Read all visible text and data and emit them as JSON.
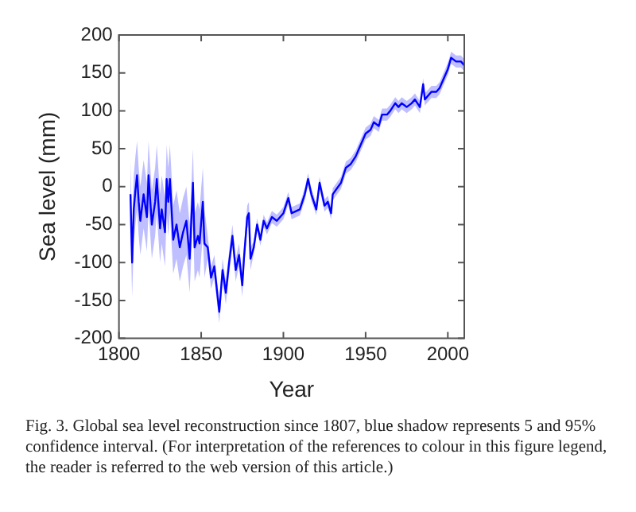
{
  "chart_data": {
    "type": "line",
    "xlabel": "Year",
    "ylabel": "Sea level (mm)",
    "annotations": [
      "Fig. 3. Global sea level reconstruction since 1807, blue shadow represents 5 and 95% confidence interval. (For interpretation of the references to colour in this figure legend, the reader is referred to the web version of this article.)"
    ],
    "xlim": [
      1800,
      2010
    ],
    "xticks": [
      1800,
      1850,
      1900,
      1950,
      2000
    ],
    "ylim": [
      -200,
      200
    ],
    "yticks": [
      -200,
      -150,
      -100,
      -50,
      0,
      50,
      100,
      150,
      200
    ],
    "legend": false,
    "grid": false,
    "series": [
      {
        "color": "#0000ff",
        "x": [
          1807,
          1808,
          1809,
          1810,
          1811,
          1812,
          1813,
          1815,
          1817,
          1818,
          1820,
          1822,
          1823,
          1825,
          1826,
          1828,
          1829,
          1830,
          1831,
          1833,
          1835,
          1837,
          1839,
          1841,
          1843,
          1845,
          1846,
          1848,
          1849,
          1851,
          1852,
          1854,
          1856,
          1858,
          1860,
          1861,
          1863,
          1865,
          1867,
          1869,
          1871,
          1873,
          1875,
          1876,
          1878,
          1879,
          1880,
          1882,
          1884,
          1886,
          1888,
          1890,
          1893,
          1896,
          1900,
          1903,
          1905,
          1910,
          1913,
          1915,
          1917,
          1920,
          1922,
          1925,
          1927,
          1929,
          1930,
          1935,
          1938,
          1941,
          1944,
          1947,
          1950,
          1953,
          1955,
          1958,
          1960,
          1963,
          1965,
          1968,
          1970,
          1972,
          1975,
          1978,
          1980,
          1983,
          1985,
          1986,
          1990,
          1993,
          1995,
          1998,
          2000,
          2002,
          2005,
          2008,
          2010
        ],
        "values": [
          -10,
          -100,
          -30,
          -5,
          15,
          -20,
          -45,
          -10,
          -40,
          15,
          -50,
          -20,
          10,
          -55,
          -30,
          -60,
          10,
          -20,
          10,
          -70,
          -50,
          -80,
          -60,
          -45,
          -95,
          5,
          -80,
          -65,
          -75,
          -20,
          -75,
          -80,
          -120,
          -105,
          -145,
          -165,
          -110,
          -140,
          -100,
          -65,
          -110,
          -90,
          -130,
          -95,
          -40,
          -35,
          -95,
          -80,
          -50,
          -70,
          -45,
          -55,
          -40,
          -45,
          -35,
          -15,
          -35,
          -30,
          -10,
          10,
          -10,
          -30,
          5,
          -25,
          -20,
          -35,
          -10,
          5,
          25,
          30,
          40,
          55,
          70,
          75,
          85,
          80,
          95,
          95,
          100,
          110,
          105,
          110,
          105,
          110,
          115,
          105,
          135,
          115,
          125,
          125,
          130,
          145,
          155,
          170,
          165,
          165,
          160
        ],
        "lower": [
          -55,
          -145,
          -75,
          -50,
          -30,
          -65,
          -90,
          -55,
          -85,
          -30,
          -95,
          -65,
          -35,
          -100,
          -75,
          -105,
          -35,
          -65,
          -35,
          -115,
          -95,
          -125,
          -105,
          -90,
          -140,
          -40,
          -125,
          -110,
          -120,
          -65,
          -120,
          -95,
          -135,
          -120,
          -160,
          -180,
          -125,
          -155,
          -115,
          -80,
          -125,
          -105,
          -145,
          -110,
          -55,
          -50,
          -110,
          -88,
          -58,
          -78,
          -53,
          -63,
          -48,
          -53,
          -43,
          -23,
          -43,
          -38,
          -18,
          2,
          -18,
          -38,
          -3,
          -33,
          -28,
          -43,
          -18,
          -3,
          17,
          22,
          32,
          47,
          62,
          67,
          77,
          72,
          87,
          87,
          92,
          102,
          97,
          102,
          97,
          102,
          107,
          97,
          127,
          107,
          117,
          117,
          122,
          137,
          147,
          162,
          157,
          157,
          152
        ],
        "upper": [
          35,
          -55,
          15,
          40,
          60,
          25,
          0,
          35,
          5,
          60,
          -5,
          25,
          55,
          -10,
          15,
          -15,
          55,
          25,
          55,
          -25,
          -5,
          -35,
          -15,
          0,
          -50,
          50,
          -35,
          -20,
          -30,
          25,
          -30,
          -65,
          -105,
          -90,
          -130,
          -150,
          -95,
          -125,
          -85,
          -50,
          -95,
          -75,
          -115,
          -80,
          -25,
          -20,
          -80,
          -72,
          -42,
          -62,
          -37,
          -47,
          -32,
          -37,
          -27,
          -7,
          -27,
          -22,
          -2,
          18,
          -2,
          -22,
          13,
          -17,
          -12,
          -27,
          -2,
          13,
          33,
          38,
          48,
          63,
          78,
          83,
          93,
          88,
          103,
          103,
          108,
          118,
          113,
          118,
          113,
          118,
          123,
          113,
          143,
          123,
          133,
          133,
          138,
          153,
          163,
          178,
          173,
          173,
          168
        ]
      }
    ]
  }
}
